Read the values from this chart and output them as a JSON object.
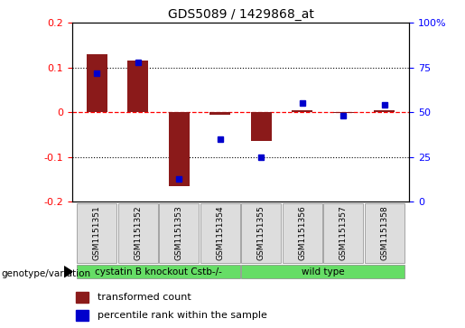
{
  "title": "GDS5089 / 1429868_at",
  "samples": [
    "GSM1151351",
    "GSM1151352",
    "GSM1151353",
    "GSM1151354",
    "GSM1151355",
    "GSM1151356",
    "GSM1151357",
    "GSM1151358"
  ],
  "transformed_count": [
    0.13,
    0.115,
    -0.165,
    -0.005,
    -0.065,
    0.005,
    -0.002,
    0.005
  ],
  "percentile_rank": [
    72,
    78,
    13,
    35,
    25,
    55,
    48,
    54
  ],
  "ylim_left": [
    -0.2,
    0.2
  ],
  "ylim_right": [
    0,
    100
  ],
  "yticks_left": [
    -0.2,
    -0.1,
    0,
    0.1,
    0.2
  ],
  "yticks_right": [
    0,
    25,
    50,
    75,
    100
  ],
  "bar_color": "#8B1A1A",
  "dot_color": "#0000CC",
  "group1_label": "cystatin B knockout Cstb-/-",
  "group2_label": "wild type",
  "group1_count": 4,
  "group2_count": 4,
  "genotype_label": "genotype/variation",
  "legend1": "transformed count",
  "legend2": "percentile rank within the sample",
  "group_color": "#66DD66",
  "bg_color": "#DDDDDD",
  "title_fontsize": 10,
  "tick_fontsize": 8,
  "label_fontsize": 8
}
